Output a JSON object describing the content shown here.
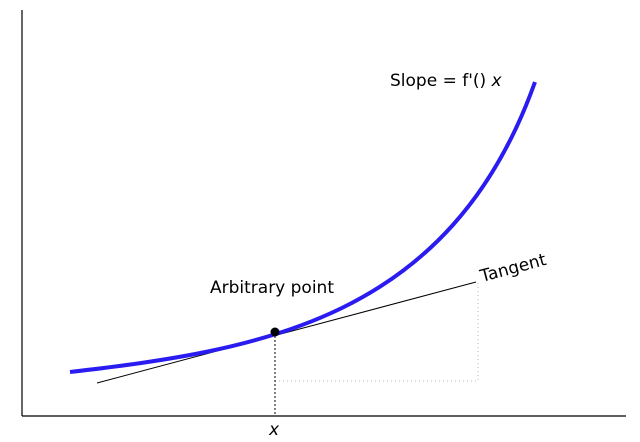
{
  "labels": {
    "slope": {
      "text": "Slope = f'()",
      "variable": "x"
    },
    "point": "Arbitrary point",
    "tangent": "Tangent",
    "x_axis": "x"
  }
}
